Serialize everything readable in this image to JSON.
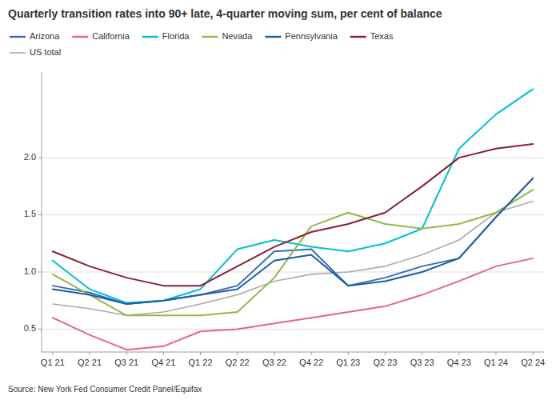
{
  "chart_data": {
    "type": "line",
    "title": "Quarterly transition rates into 90+ late, 4-quarter moving sum, per cent of balance",
    "source": "Source: New York Fed Consumer Credit Panel/Equifax",
    "categories": [
      "Q1 21",
      "Q2 21",
      "Q3 21",
      "Q4 21",
      "Q1 22",
      "Q2 22",
      "Q3 22",
      "Q4 22",
      "Q1 23",
      "Q2 23",
      "Q3 23",
      "Q4 23",
      "Q1 24",
      "Q2 24"
    ],
    "series": [
      {
        "name": "Arizona",
        "color": "#4169B0",
        "values": [
          0.88,
          0.82,
          0.72,
          0.75,
          0.8,
          0.88,
          1.18,
          1.2,
          0.88,
          0.95,
          1.05,
          1.12,
          1.48,
          1.82
        ]
      },
      {
        "name": "California",
        "color": "#E8628A",
        "values": [
          0.6,
          0.45,
          0.32,
          0.35,
          0.48,
          0.5,
          0.55,
          0.6,
          0.65,
          0.7,
          0.8,
          0.92,
          1.05,
          1.12
        ]
      },
      {
        "name": "Florida",
        "color": "#00BFCC",
        "values": [
          1.1,
          0.85,
          0.73,
          0.75,
          0.85,
          1.2,
          1.28,
          1.22,
          1.18,
          1.25,
          1.38,
          2.08,
          2.38,
          2.6
        ]
      },
      {
        "name": "Nevada",
        "color": "#92B848",
        "values": [
          0.98,
          0.8,
          0.62,
          0.62,
          0.62,
          0.65,
          0.95,
          1.4,
          1.52,
          1.42,
          1.38,
          1.42,
          1.52,
          1.72
        ]
      },
      {
        "name": "Pennsylvania",
        "color": "#1A5FA8",
        "values": [
          0.85,
          0.8,
          0.72,
          0.75,
          0.8,
          0.85,
          1.1,
          1.15,
          0.88,
          0.92,
          1.0,
          1.12,
          1.48,
          1.82
        ]
      },
      {
        "name": "Texas",
        "color": "#8B1A3C",
        "values": [
          1.18,
          1.05,
          0.95,
          0.88,
          0.88,
          1.05,
          1.22,
          1.35,
          1.42,
          1.52,
          1.75,
          2.0,
          2.08,
          2.12
        ]
      },
      {
        "name": "US total",
        "color": "#AAAAAA",
        "values": [
          0.72,
          0.68,
          0.62,
          0.65,
          0.72,
          0.8,
          0.92,
          0.98,
          1.0,
          1.05,
          1.15,
          1.28,
          1.52,
          1.62
        ]
      }
    ],
    "ylim": [
      0.3,
      2.75
    ],
    "yticks": [
      0.5,
      {
        "value": 1.0,
        "label": "1.0"
      },
      1.5,
      {
        "value": 2.0,
        "label": "2.0"
      }
    ],
    "grid": true,
    "legend": "top-left"
  }
}
